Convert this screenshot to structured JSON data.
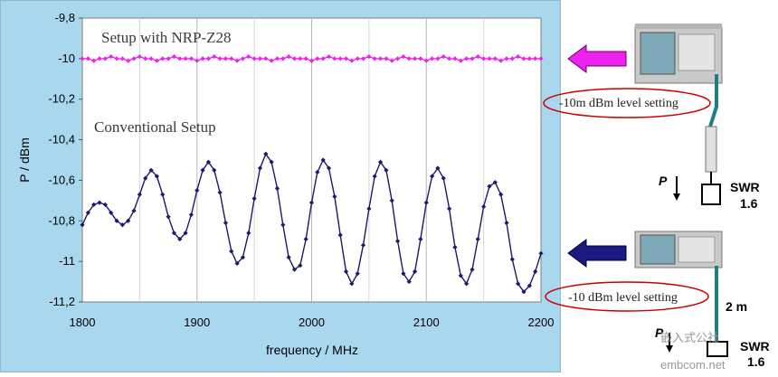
{
  "chart_data": {
    "type": "line",
    "xlabel": "frequency / MHz",
    "ylabel": "P / dBm",
    "xlim": [
      1800,
      2200
    ],
    "ylim": [
      -11.2,
      -9.8
    ],
    "x_ticks": [
      "1800",
      "1900",
      "2000",
      "2100",
      "2200"
    ],
    "y_ticks": [
      "-9,8",
      "-10",
      "-10,2",
      "-10,4",
      "-10,6",
      "-10,8",
      "-11",
      "-11,2"
    ],
    "grid": "vertical",
    "series": [
      {
        "name": "Setup with NRP-Z28",
        "color": "#ee22ee",
        "x": [
          1800,
          1805,
          1810,
          1815,
          1820,
          1825,
          1830,
          1835,
          1840,
          1845,
          1850,
          1855,
          1860,
          1865,
          1870,
          1875,
          1880,
          1885,
          1890,
          1895,
          1900,
          1905,
          1910,
          1915,
          1920,
          1925,
          1930,
          1935,
          1940,
          1945,
          1950,
          1955,
          1960,
          1965,
          1970,
          1975,
          1980,
          1985,
          1990,
          1995,
          2000,
          2005,
          2010,
          2015,
          2020,
          2025,
          2030,
          2035,
          2040,
          2045,
          2050,
          2055,
          2060,
          2065,
          2070,
          2075,
          2080,
          2085,
          2090,
          2095,
          2100,
          2105,
          2110,
          2115,
          2120,
          2125,
          2130,
          2135,
          2140,
          2145,
          2150,
          2155,
          2160,
          2165,
          2170,
          2175,
          2180,
          2185,
          2190,
          2195,
          2200
        ],
        "values": [
          -10.0,
          -10.0,
          -10.01,
          -10.0,
          -10.0,
          -9.99,
          -10.0,
          -10.0,
          -10.01,
          -10.0,
          -9.99,
          -10.0,
          -10.0,
          -10.01,
          -10.0,
          -10.0,
          -9.99,
          -10.0,
          -10.0,
          -10.0,
          -10.01,
          -10.0,
          -10.0,
          -9.99,
          -10.0,
          -10.0,
          -10.0,
          -10.01,
          -10.0,
          -9.99,
          -10.0,
          -10.0,
          -10.0,
          -10.01,
          -10.0,
          -10.0,
          -9.99,
          -10.0,
          -10.0,
          -10.0,
          -10.01,
          -10.0,
          -10.0,
          -9.99,
          -10.0,
          -10.0,
          -10.0,
          -10.01,
          -10.0,
          -10.0,
          -9.99,
          -10.0,
          -10.0,
          -10.0,
          -10.01,
          -10.0,
          -9.99,
          -10.0,
          -10.0,
          -10.0,
          -10.01,
          -10.0,
          -10.0,
          -9.99,
          -10.0,
          -10.0,
          -10.01,
          -10.0,
          -10.0,
          -9.99,
          -10.0,
          -10.0,
          -10.0,
          -10.01,
          -10.0,
          -10.0,
          -9.99,
          -10.0,
          -10.0,
          -10.0,
          -10.0
        ]
      },
      {
        "name": "Conventional Setup",
        "color": "#1a1a6e",
        "x": [
          1800,
          1805,
          1810,
          1815,
          1820,
          1825,
          1830,
          1835,
          1840,
          1845,
          1850,
          1855,
          1860,
          1865,
          1870,
          1875,
          1880,
          1885,
          1890,
          1895,
          1900,
          1905,
          1910,
          1915,
          1920,
          1925,
          1930,
          1935,
          1940,
          1945,
          1950,
          1955,
          1960,
          1965,
          1970,
          1975,
          1980,
          1985,
          1990,
          1995,
          2000,
          2005,
          2010,
          2015,
          2020,
          2025,
          2030,
          2035,
          2040,
          2045,
          2050,
          2055,
          2060,
          2065,
          2070,
          2075,
          2080,
          2085,
          2090,
          2095,
          2100,
          2105,
          2110,
          2115,
          2120,
          2125,
          2130,
          2135,
          2140,
          2145,
          2150,
          2155,
          2160,
          2165,
          2170,
          2175,
          2180,
          2185,
          2190,
          2195,
          2200
        ],
        "values": [
          -10.82,
          -10.76,
          -10.72,
          -10.71,
          -10.72,
          -10.76,
          -10.8,
          -10.82,
          -10.8,
          -10.75,
          -10.67,
          -10.59,
          -10.55,
          -10.58,
          -10.67,
          -10.78,
          -10.86,
          -10.89,
          -10.86,
          -10.77,
          -10.65,
          -10.55,
          -10.51,
          -10.55,
          -10.66,
          -10.81,
          -10.95,
          -11.01,
          -10.98,
          -10.86,
          -10.69,
          -10.54,
          -10.47,
          -10.51,
          -10.64,
          -10.82,
          -10.98,
          -11.04,
          -11.02,
          -10.89,
          -10.71,
          -10.56,
          -10.5,
          -10.54,
          -10.68,
          -10.87,
          -11.05,
          -11.11,
          -11.06,
          -10.92,
          -10.74,
          -10.58,
          -10.51,
          -10.55,
          -10.7,
          -10.9,
          -11.06,
          -11.1,
          -11.05,
          -10.89,
          -10.71,
          -10.58,
          -10.54,
          -10.59,
          -10.74,
          -10.93,
          -11.07,
          -11.11,
          -11.04,
          -10.89,
          -10.73,
          -10.63,
          -10.61,
          -10.67,
          -10.81,
          -10.99,
          -11.11,
          -11.15,
          -11.12,
          -11.05,
          -10.96
        ]
      }
    ]
  },
  "diagram": {
    "top_label": "-10m dBm level setting",
    "bottom_label": "-10 dBm level setting",
    "power_symbol": "P",
    "swr_label": "SWR",
    "swr_value": "1.6",
    "cable_length": "2 m",
    "arrow_top_color": "#ee22ee",
    "arrow_bottom_color": "#1a1a80"
  },
  "watermark": {
    "line1": "嵌入式公社",
    "line2": "embcom.net"
  }
}
